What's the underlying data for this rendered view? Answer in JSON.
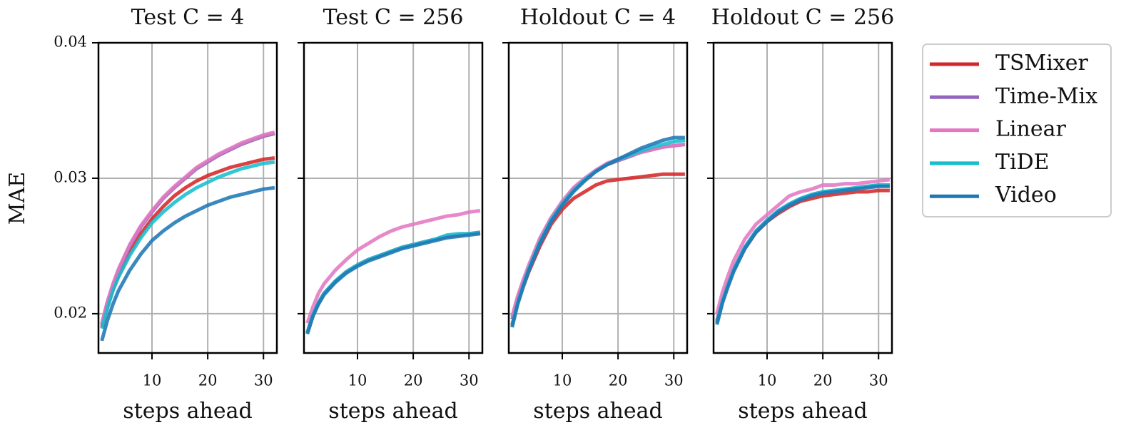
{
  "chart_data": [
    {
      "type": "line",
      "title": "Test C = 4",
      "xlabel": "steps ahead",
      "ylabel": "MAE",
      "x": [
        1,
        2,
        3,
        4,
        6,
        8,
        10,
        12,
        14,
        16,
        18,
        20,
        22,
        24,
        26,
        28,
        30,
        32
      ],
      "xlim": [
        0.4,
        32.4
      ],
      "xticks": [
        10,
        20,
        30
      ],
      "ylim": [
        0.0171,
        0.04
      ],
      "yticks": [
        0.02,
        0.03,
        0.04
      ],
      "grid": true,
      "series": [
        {
          "name": "TSMixer",
          "color": "#d62728",
          "values": [
            0.019,
            0.0205,
            0.0218,
            0.0228,
            0.0245,
            0.0259,
            0.027,
            0.0279,
            0.0287,
            0.0293,
            0.0298,
            0.0302,
            0.0305,
            0.0308,
            0.031,
            0.0312,
            0.0314,
            0.0315
          ]
        },
        {
          "name": "Time-Mix",
          "color": "#9467bd",
          "values": [
            0.0192,
            0.0208,
            0.0221,
            0.0232,
            0.025,
            0.0264,
            0.0275,
            0.0285,
            0.0293,
            0.03,
            0.0307,
            0.0312,
            0.0317,
            0.0321,
            0.0325,
            0.0328,
            0.0331,
            0.0333
          ]
        },
        {
          "name": "Linear",
          "color": "#e377c2",
          "values": [
            0.0193,
            0.0209,
            0.0222,
            0.0233,
            0.0251,
            0.0265,
            0.0276,
            0.0286,
            0.0294,
            0.0301,
            0.0308,
            0.0313,
            0.0318,
            0.0322,
            0.0326,
            0.0329,
            0.0332,
            0.0334
          ]
        },
        {
          "name": "TiDE",
          "color": "#17becf",
          "values": [
            0.0189,
            0.0204,
            0.0217,
            0.0227,
            0.0243,
            0.0256,
            0.0267,
            0.0275,
            0.0282,
            0.0288,
            0.0293,
            0.0297,
            0.0301,
            0.0304,
            0.0307,
            0.0309,
            0.0311,
            0.0312
          ]
        },
        {
          "name": "Video",
          "color": "#1f77b4",
          "values": [
            0.018,
            0.0195,
            0.0207,
            0.0217,
            0.0232,
            0.0244,
            0.0254,
            0.0261,
            0.0267,
            0.0272,
            0.0276,
            0.028,
            0.0283,
            0.0286,
            0.0288,
            0.029,
            0.0292,
            0.0293
          ]
        }
      ]
    },
    {
      "type": "line",
      "title": "Test C = 256",
      "xlabel": "steps ahead",
      "x": [
        1,
        2,
        3,
        4,
        6,
        8,
        10,
        12,
        14,
        16,
        18,
        20,
        22,
        24,
        26,
        28,
        30,
        32
      ],
      "xlim": [
        0.4,
        32.4
      ],
      "xticks": [
        10,
        20,
        30
      ],
      "ylim": [
        0.0171,
        0.04
      ],
      "yticks": [
        0.02,
        0.03,
        0.04
      ],
      "grid": true,
      "series": [
        {
          "color": "#d62728",
          "values": [
            0.0186,
            0.0199,
            0.0208,
            0.0215,
            0.0224,
            0.0231,
            0.0236,
            0.024,
            0.0243,
            0.0246,
            0.0249,
            0.0251,
            0.0253,
            0.0255,
            0.0257,
            0.0258,
            0.0259,
            0.026
          ]
        },
        {
          "color": "#9467bd",
          "values": [
            0.0186,
            0.0199,
            0.0208,
            0.0215,
            0.0224,
            0.0231,
            0.0236,
            0.024,
            0.0243,
            0.0246,
            0.0249,
            0.0251,
            0.0253,
            0.0255,
            0.0257,
            0.0258,
            0.0259,
            0.026
          ]
        },
        {
          "color": "#e377c2",
          "values": [
            0.0193,
            0.0205,
            0.0215,
            0.0222,
            0.0232,
            0.024,
            0.0247,
            0.0252,
            0.0257,
            0.0261,
            0.0264,
            0.0266,
            0.0268,
            0.027,
            0.0272,
            0.0273,
            0.0275,
            0.0276
          ]
        },
        {
          "color": "#17becf",
          "values": [
            0.0186,
            0.0199,
            0.0208,
            0.0215,
            0.0224,
            0.0231,
            0.0236,
            0.024,
            0.0243,
            0.0246,
            0.0249,
            0.0251,
            0.0253,
            0.0255,
            0.0258,
            0.0259,
            0.0259,
            0.026
          ]
        },
        {
          "color": "#1f77b4",
          "values": [
            0.0185,
            0.0198,
            0.0207,
            0.0214,
            0.0223,
            0.023,
            0.0235,
            0.0239,
            0.0242,
            0.0245,
            0.0248,
            0.025,
            0.0252,
            0.0254,
            0.0256,
            0.0257,
            0.0258,
            0.0259
          ]
        }
      ]
    },
    {
      "type": "line",
      "title": "Holdout C = 4",
      "xlabel": "steps ahead",
      "x": [
        1,
        2,
        3,
        4,
        6,
        8,
        10,
        12,
        14,
        16,
        18,
        20,
        22,
        24,
        26,
        28,
        30,
        32
      ],
      "xlim": [
        0.4,
        32.4
      ],
      "xticks": [
        10,
        20,
        30
      ],
      "ylim": [
        0.0171,
        0.04
      ],
      "yticks": [
        0.02,
        0.03,
        0.04
      ],
      "grid": true,
      "series": [
        {
          "color": "#d62728",
          "values": [
            0.0192,
            0.0208,
            0.022,
            0.0231,
            0.025,
            0.0266,
            0.0277,
            0.0285,
            0.029,
            0.0295,
            0.0298,
            0.0299,
            0.03,
            0.0301,
            0.0302,
            0.0303,
            0.0303,
            0.0303
          ]
        },
        {
          "color": "#9467bd",
          "values": [
            0.0196,
            0.0211,
            0.0223,
            0.0234,
            0.0254,
            0.027,
            0.0282,
            0.0292,
            0.0299,
            0.0305,
            0.031,
            0.0313,
            0.0316,
            0.0319,
            0.0321,
            0.0323,
            0.0324,
            0.0325
          ]
        },
        {
          "color": "#e377c2",
          "values": [
            0.0198,
            0.0213,
            0.0225,
            0.0236,
            0.0256,
            0.0271,
            0.0283,
            0.0293,
            0.03,
            0.0306,
            0.0311,
            0.0314,
            0.0317,
            0.0319,
            0.0321,
            0.0323,
            0.0324,
            0.0325
          ]
        },
        {
          "color": "#17becf",
          "values": [
            0.0191,
            0.0208,
            0.0221,
            0.0233,
            0.0253,
            0.0269,
            0.0281,
            0.0291,
            0.0299,
            0.0305,
            0.031,
            0.0314,
            0.0317,
            0.032,
            0.0323,
            0.0325,
            0.0327,
            0.0328
          ]
        },
        {
          "color": "#1f77b4",
          "values": [
            0.019,
            0.0207,
            0.022,
            0.0232,
            0.0252,
            0.0268,
            0.028,
            0.029,
            0.0298,
            0.0305,
            0.031,
            0.0314,
            0.0318,
            0.0322,
            0.0325,
            0.0328,
            0.033,
            0.033
          ]
        }
      ]
    },
    {
      "type": "line",
      "title": "Holdout C = 256",
      "xlabel": "steps ahead",
      "x": [
        1,
        2,
        3,
        4,
        6,
        8,
        10,
        12,
        14,
        16,
        18,
        20,
        22,
        24,
        26,
        28,
        30,
        32
      ],
      "xlim": [
        0.4,
        32.4
      ],
      "xticks": [
        10,
        20,
        30
      ],
      "ylim": [
        0.0171,
        0.04
      ],
      "yticks": [
        0.02,
        0.03,
        0.04
      ],
      "grid": true,
      "series": [
        {
          "color": "#d62728",
          "values": [
            0.0194,
            0.0209,
            0.0221,
            0.0232,
            0.0248,
            0.026,
            0.0268,
            0.0274,
            0.0279,
            0.0283,
            0.0285,
            0.0287,
            0.0288,
            0.0289,
            0.029,
            0.029,
            0.0291,
            0.0291
          ]
        },
        {
          "color": "#9467bd",
          "values": [
            0.0195,
            0.021,
            0.0222,
            0.0233,
            0.0249,
            0.0261,
            0.0269,
            0.0276,
            0.0281,
            0.0285,
            0.0288,
            0.029,
            0.0291,
            0.0292,
            0.0293,
            0.0294,
            0.0295,
            0.0295
          ]
        },
        {
          "color": "#e377c2",
          "values": [
            0.02,
            0.0216,
            0.0228,
            0.0239,
            0.0255,
            0.0266,
            0.0273,
            0.028,
            0.0287,
            0.029,
            0.0292,
            0.0295,
            0.0295,
            0.0296,
            0.0296,
            0.0297,
            0.0298,
            0.0299
          ]
        },
        {
          "color": "#17becf",
          "values": [
            0.0193,
            0.0209,
            0.0221,
            0.0232,
            0.0249,
            0.0261,
            0.0269,
            0.0276,
            0.0281,
            0.0285,
            0.0288,
            0.029,
            0.0291,
            0.0292,
            0.0293,
            0.0294,
            0.0295,
            0.0295
          ]
        },
        {
          "color": "#1f77b4",
          "values": [
            0.0192,
            0.0208,
            0.022,
            0.0231,
            0.0248,
            0.026,
            0.0268,
            0.0275,
            0.028,
            0.0284,
            0.0287,
            0.0289,
            0.029,
            0.0291,
            0.0292,
            0.0293,
            0.0294,
            0.0294
          ]
        }
      ]
    }
  ]
}
